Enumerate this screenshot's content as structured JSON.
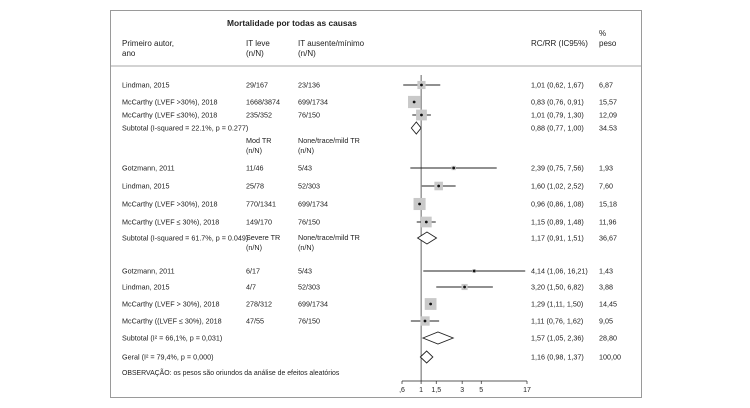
{
  "header": {
    "title": "Mortalidade por todas as causas",
    "col_author_line1": "Primeiro autor,",
    "col_author_line2": "ano",
    "col_group1_line1": "IT leve",
    "col_group1_line2": "(n/N)",
    "col_group2_line1": "IT ausente/mínimo",
    "col_group2_line2": "(n/N)",
    "col_rr": "RC/RR (IC95%)",
    "col_weight_line1": "%",
    "col_weight_line2": "peso"
  },
  "chart_data": {
    "type": "forest",
    "x_scale": "log",
    "xlim": [
      0.6,
      17
    ],
    "reference_line": 1,
    "x_ticks": [
      {
        "value": 0.6,
        "label": ",6"
      },
      {
        "value": 1,
        "label": "1"
      },
      {
        "value": 1.5,
        "label": "1,5"
      },
      {
        "value": 3,
        "label": "3"
      },
      {
        "value": 5,
        "label": "5"
      },
      {
        "value": 17,
        "label": "17"
      }
    ],
    "groups": [
      {
        "subheader": null,
        "studies": [
          {
            "label": "Lindman, 2015",
            "n1": "29/167",
            "n2": "23/136",
            "rr": 1.01,
            "lo": 0.62,
            "hi": 1.67,
            "rr_text": "1,01 (0,62, 1,67)",
            "weight": 6.87,
            "weight_text": "6,87"
          },
          {
            "label": "McCarthy (LVEF >30%), 2018",
            "n1": "1668/3874",
            "n2": "699/1734",
            "rr": 0.83,
            "lo": 0.76,
            "hi": 0.91,
            "rr_text": "0,83 (0,76, 0,91)",
            "weight": 15.57,
            "weight_text": "15,57"
          },
          {
            "label": "McCarthy (LVEF ≤30%), 2018",
            "n1": "235/352",
            "n2": "76/150",
            "rr": 1.01,
            "lo": 0.79,
            "hi": 1.3,
            "rr_text": "1,01 (0,79, 1,30)",
            "weight": 12.09,
            "weight_text": "12,09"
          }
        ],
        "subtotal": {
          "label": "Subtotal  (I-squared = 22.1%, p = 0.277)",
          "rr": 0.88,
          "lo": 0.77,
          "hi": 1.0,
          "rr_text": "0,88 (0,77, 1,00)",
          "weight_text": "34.53"
        }
      },
      {
        "subheader": {
          "g1_line1": "Mod TR",
          "g1_line2": "(n/N)",
          "g2_line1": "None/trace/mild TR",
          "g2_line2": "(n/N)"
        },
        "studies": [
          {
            "label": "Gotzmann, 2011",
            "n1": "11/46",
            "n2": "5/43",
            "rr": 2.39,
            "lo": 0.75,
            "hi": 7.56,
            "rr_text": "2,39 (0,75, 7,56)",
            "weight": 1.93,
            "weight_text": "1,93"
          },
          {
            "label": "Lindman, 2015",
            "n1": "25/78",
            "n2": "52/303",
            "rr": 1.6,
            "lo": 1.02,
            "hi": 2.52,
            "rr_text": "1,60 (1,02, 2,52)",
            "weight": 7.6,
            "weight_text": "7,60"
          },
          {
            "label": "McCarthy (LVEF >30%), 2018",
            "n1": "770/1341",
            "n2": "699/1734",
            "rr": 0.96,
            "lo": 0.86,
            "hi": 1.08,
            "rr_text": "0,96 (0,86, 1,08)",
            "weight": 15.18,
            "weight_text": "15,18"
          },
          {
            "label": "McCarthy (LVEF ≤ 30%), 2018",
            "n1": "149/170",
            "n2": "76/150",
            "rr": 1.15,
            "lo": 0.89,
            "hi": 1.48,
            "rr_text": "1,15 (0,89, 1,48)",
            "weight": 11.96,
            "weight_text": "11,96"
          }
        ],
        "subtotal": {
          "label": "Subtotal  (I-squared = 61.7%, p = 0.049)",
          "rr": 1.17,
          "lo": 0.91,
          "hi": 1.51,
          "rr_text": "1,17 (0,91, 1,51)",
          "weight_text": "36,67"
        }
      },
      {
        "subheader": {
          "g1_line1": "Severe TR",
          "g1_line2": "(n/N)",
          "g2_line1": "None/trace/mild TR",
          "g2_line2": "(n/N)"
        },
        "studies": [
          {
            "label": "Gotzmann, 2011",
            "n1": "6/17",
            "n2": "5/43",
            "rr": 4.14,
            "lo": 1.06,
            "hi": 16.21,
            "rr_text": "4,14 (1,06, 16,21)",
            "weight": 1.43,
            "weight_text": "1,43"
          },
          {
            "label": "Lindman, 2015",
            "n1": "4/7",
            "n2": "52/303",
            "rr": 3.2,
            "lo": 1.5,
            "hi": 6.82,
            "rr_text": "3,20 (1,50, 6,82)",
            "weight": 3.88,
            "weight_text": "3,88"
          },
          {
            "label": "McCarthy (LVEF > 30%), 2018",
            "n1": "278/312",
            "n2": "699/1734",
            "rr": 1.29,
            "lo": 1.11,
            "hi": 1.5,
            "rr_text": "1,29 (1,11, 1,50)",
            "weight": 14.45,
            "weight_text": "14,45"
          },
          {
            "label": "McCarthy ((LVEF ≤ 30%), 2018",
            "n1": "47/55",
            "n2": "76/150",
            "rr": 1.11,
            "lo": 0.76,
            "hi": 1.62,
            "rr_text": "1,11 (0,76, 1,62)",
            "weight": 9.05,
            "weight_text": "9,05"
          }
        ],
        "subtotal": {
          "label": "Subtotal (I² = 66,1%, p = 0,031)",
          "rr": 1.57,
          "lo": 1.05,
          "hi": 2.36,
          "rr_text": "1,57 (1,05, 2,36)",
          "weight_text": "28,80"
        }
      }
    ],
    "overall": {
      "label": "Geral (I² = 79,4%, p = 0,000)",
      "rr": 1.16,
      "lo": 0.98,
      "hi": 1.37,
      "rr_text": "1,16 (0,98, 1,37)",
      "weight_text": "100,00"
    },
    "note": "OBSERVAÇÃO: os pesos são oriundos da análise de efeitos aleatórios"
  }
}
